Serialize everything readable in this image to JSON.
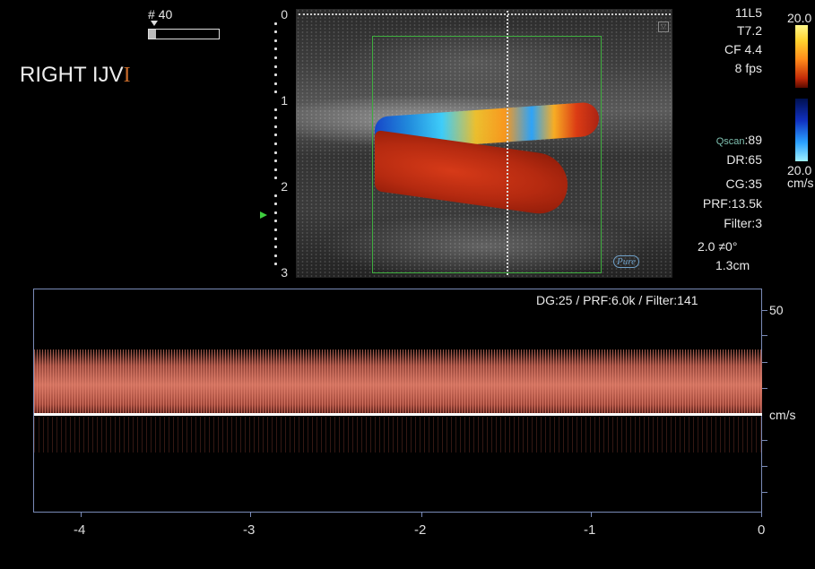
{
  "frame_label": "# 40",
  "side_label": "RIGHT  IJV",
  "side_marker": "I",
  "probe": {
    "model": "11L5",
    "t": "T7.2",
    "cf": "CF 4.4",
    "fps": "8 fps"
  },
  "colorbar": {
    "top_value": "20.0",
    "bottom_value": "20.0",
    "unit": "cm/s"
  },
  "qscan": "Qscan",
  "qscan_value": ":89",
  "dr": "DR:65",
  "cg": "CG:35",
  "prf_color": "PRF:13.5k",
  "filter_color": "Filter:3",
  "angle": "2.0   ≠0°",
  "gate": "1.3cm",
  "pure_logo": "Pure",
  "depth_ticks": [
    "0",
    "1",
    "2",
    "3"
  ],
  "doppler_header": "DG:25 /   PRF:6.0k   / Filter:141",
  "doppler_scale": {
    "top": "50",
    "unit": "cm/s"
  },
  "time_axis": [
    "-4",
    "-3",
    "-2",
    "-1",
    "0"
  ],
  "colors": {
    "roi": "#3fae3f",
    "frame": "#7a8bb8",
    "background": "#000000"
  }
}
